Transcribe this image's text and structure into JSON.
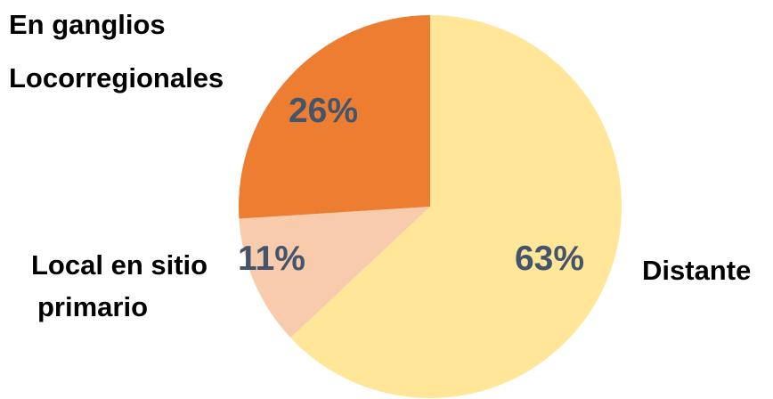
{
  "chart_data": {
    "type": "pie",
    "title": "",
    "legend": "none",
    "slices": [
      {
        "category_lines": [
          "Distante"
        ],
        "value": 63,
        "label": "63%",
        "color": "#ffe699"
      },
      {
        "category_lines": [
          "Local en sitio",
          "primario"
        ],
        "value": 11,
        "label": "11%",
        "color": "#f8cbad"
      },
      {
        "category_lines": [
          "En ganglios",
          "Locorregionales"
        ],
        "value": 26,
        "label": "26%",
        "color": "#ed7d31"
      }
    ]
  }
}
